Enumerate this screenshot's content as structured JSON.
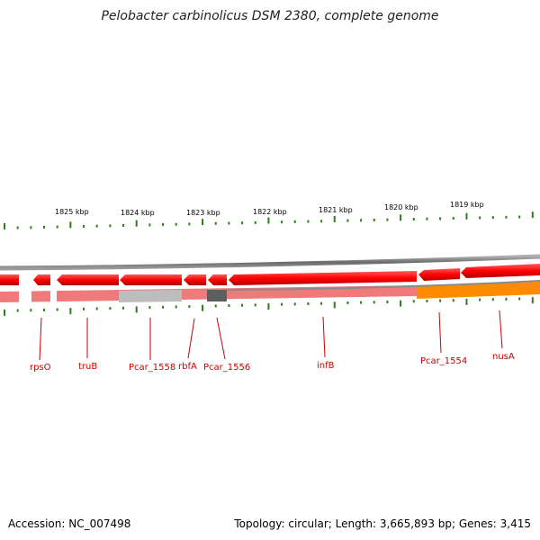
{
  "title": "Pelobacter carbinolicus DSM 2380, complete genome",
  "scale_labels": [
    "1825 kbp",
    "1824 kbp",
    "1823 kbp",
    "1822 kbp",
    "1821 kbp",
    "1820 kbp",
    "1819 kbp"
  ],
  "gene_labels": [
    "rpsO",
    "truB",
    "Pcar_1558",
    "rbfA",
    "Pcar_1556",
    "infB",
    "Pcar_1554",
    "nusA"
  ],
  "footer": {
    "accession": "Accession: NC_007498",
    "topology": "Topology: circular; Length: 3,665,893 bp; Genes: 3,415"
  },
  "colors": {
    "gene": "#ff0000",
    "gene_light": "#f07a7a",
    "grey_band": "#bdbdbd",
    "dark_band": "#5e5e5e",
    "orange_band": "#ff8c00",
    "backbone": "#888888",
    "tick": "#2e7d16",
    "label": "#cc0000"
  }
}
